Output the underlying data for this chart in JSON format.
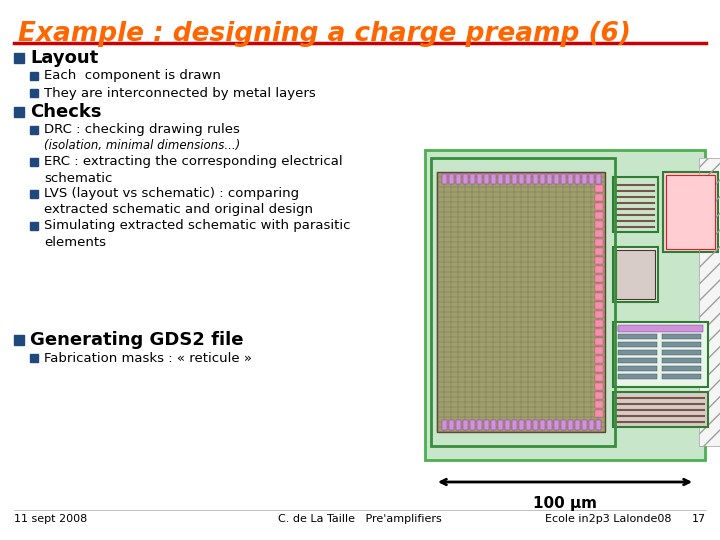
{
  "title": "Example : designing a charge preamp (6)",
  "title_color": "#FF6600",
  "bg_color": "#FFFFFF",
  "line_color": "#CC0000",
  "bullet_color": "#1F497D",
  "section1_header": "Layout",
  "section1_bullets": [
    "Each  component is drawn",
    "They are interconnected by metal layers"
  ],
  "section2_header": "Checks",
  "section3_header": "Generating GDS2 file",
  "section3_bullets": [
    "Fabrication masks : « reticule »"
  ],
  "footer_left": "11 sept 2008",
  "footer_center": "C. de La Taille   Pre'amplifiers",
  "footer_right": "Ecole in2p3 Lalonde08",
  "footer_page": "17",
  "scale_label": "100 μm",
  "text_color": "#000000"
}
